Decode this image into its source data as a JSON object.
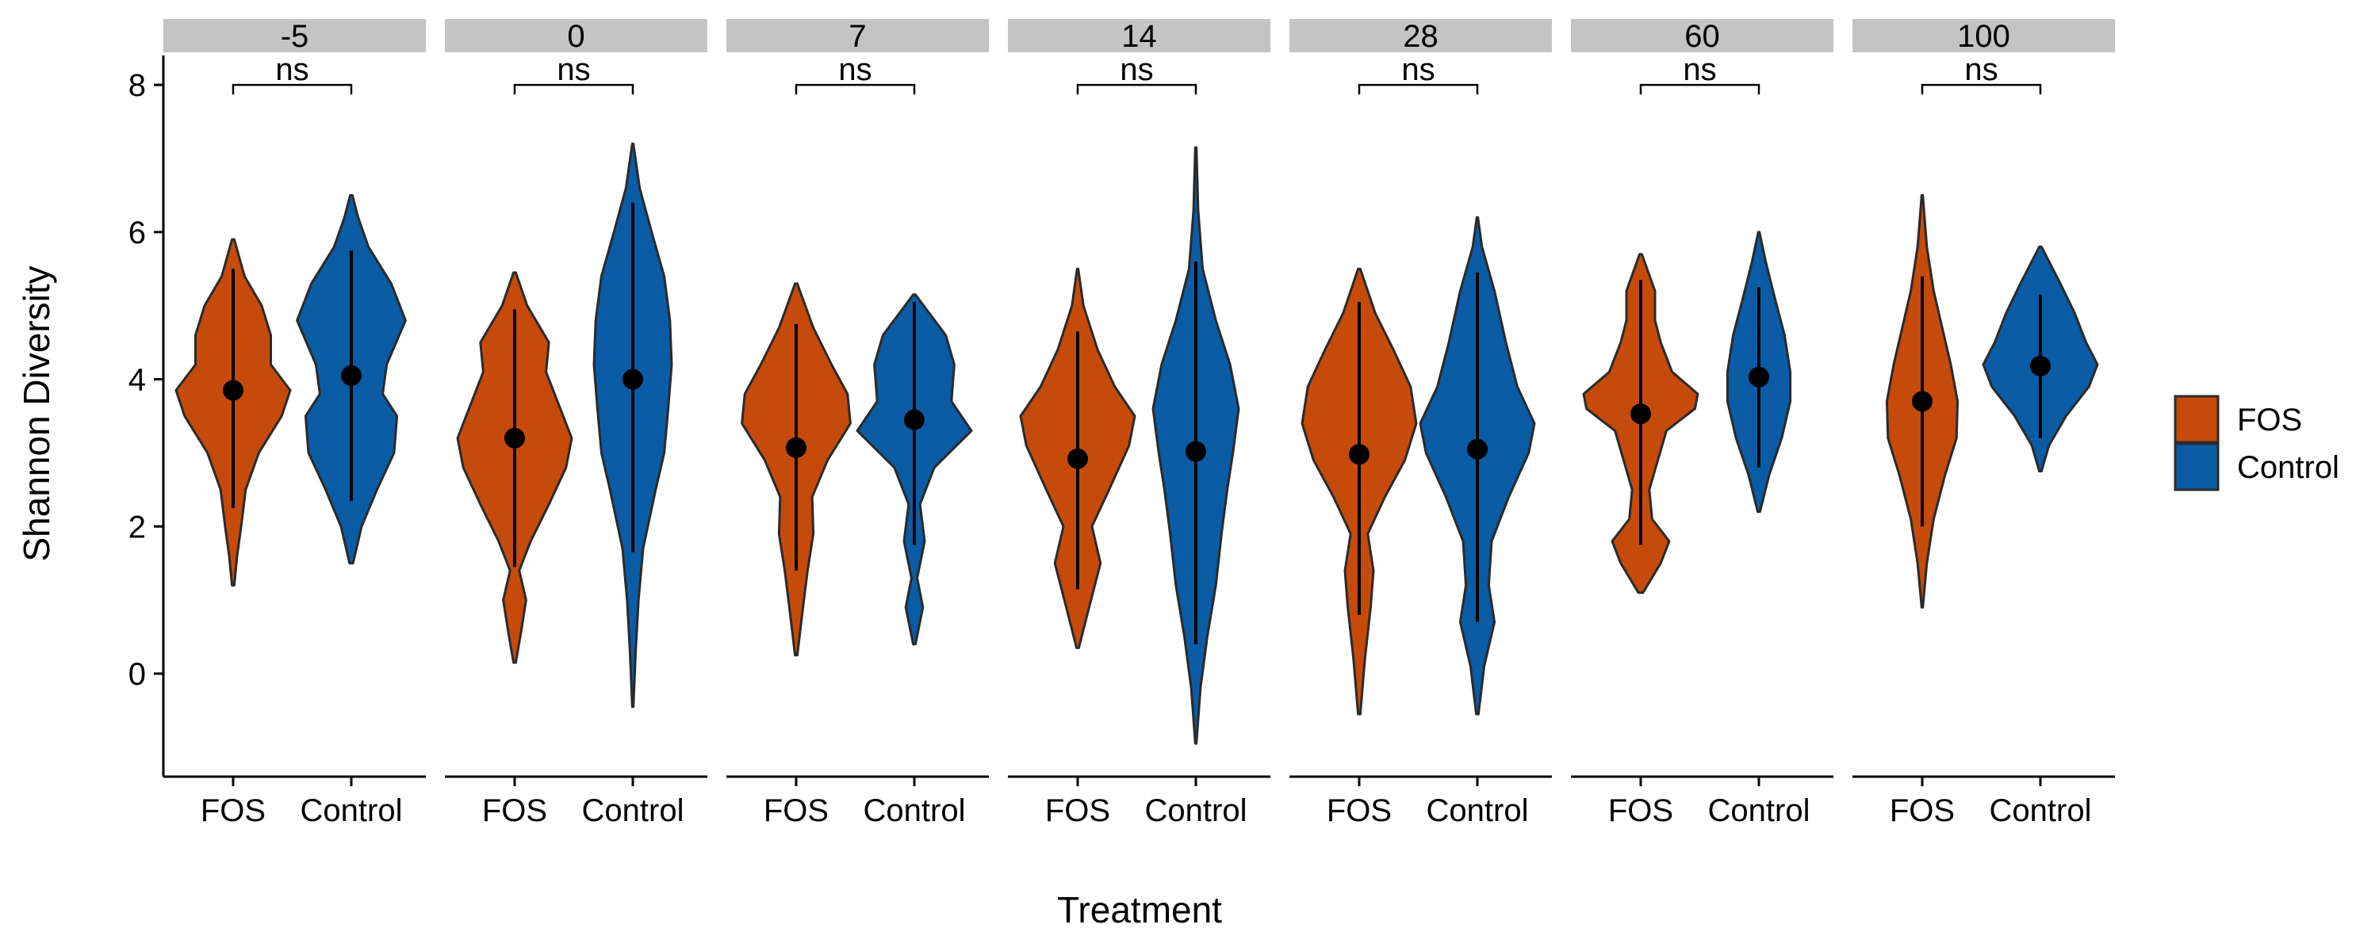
{
  "chart_data": {
    "type": "violin",
    "facet_variable_values": [
      "-5",
      "0",
      "7",
      "14",
      "28",
      "60",
      "100"
    ],
    "categories": [
      "FOS",
      "Control"
    ],
    "xlabel": "Treatment",
    "ylabel": "Shannon Diversity",
    "ylim": [
      -1.4,
      8.4
    ],
    "yticks": [
      0,
      2,
      4,
      6,
      8
    ],
    "legend": {
      "placement": "right",
      "entries": [
        {
          "label": "FOS",
          "color": "#C64B0B"
        },
        {
          "label": "Control",
          "color": "#0A5CA5"
        }
      ]
    },
    "grid": false,
    "significance": {
      "label": "ns",
      "bracket_y": 8.0
    },
    "facets": [
      {
        "label": "-5",
        "groups": [
          {
            "treatment": "FOS",
            "min": 1.2,
            "max": 5.9,
            "mean": 3.85,
            "lower": 2.25,
            "upper": 5.5,
            "density": [
              [
                1.2,
                0.02
              ],
              [
                1.6,
                0.07
              ],
              [
                2.0,
                0.14
              ],
              [
                2.5,
                0.22
              ],
              [
                3.0,
                0.45
              ],
              [
                3.5,
                0.85
              ],
              [
                3.85,
                1.0
              ],
              [
                4.2,
                0.66
              ],
              [
                4.6,
                0.66
              ],
              [
                5.0,
                0.5
              ],
              [
                5.4,
                0.2
              ],
              [
                5.9,
                0.02
              ]
            ]
          },
          {
            "treatment": "Control",
            "min": 1.5,
            "max": 6.5,
            "mean": 4.05,
            "lower": 2.35,
            "upper": 5.75,
            "density": [
              [
                1.5,
                0.03
              ],
              [
                2.0,
                0.18
              ],
              [
                2.5,
                0.45
              ],
              [
                3.0,
                0.75
              ],
              [
                3.5,
                0.8
              ],
              [
                3.8,
                0.55
              ],
              [
                4.2,
                0.62
              ],
              [
                4.8,
                0.95
              ],
              [
                5.3,
                0.7
              ],
              [
                5.8,
                0.3
              ],
              [
                6.2,
                0.12
              ],
              [
                6.5,
                0.02
              ]
            ]
          }
        ]
      },
      {
        "label": "0",
        "groups": [
          {
            "treatment": "FOS",
            "min": 0.15,
            "max": 5.45,
            "mean": 3.2,
            "lower": 1.45,
            "upper": 4.95,
            "density": [
              [
                0.15,
                0.02
              ],
              [
                0.6,
                0.12
              ],
              [
                1.0,
                0.2
              ],
              [
                1.4,
                0.08
              ],
              [
                1.8,
                0.28
              ],
              [
                2.3,
                0.6
              ],
              [
                2.8,
                0.9
              ],
              [
                3.2,
                1.0
              ],
              [
                3.6,
                0.8
              ],
              [
                4.1,
                0.55
              ],
              [
                4.5,
                0.6
              ],
              [
                5.0,
                0.22
              ],
              [
                5.45,
                0.02
              ]
            ]
          },
          {
            "treatment": "Control",
            "min": -0.45,
            "max": 7.2,
            "mean": 4.0,
            "lower": 1.65,
            "upper": 6.4,
            "density": [
              [
                -0.45,
                0.01
              ],
              [
                0.3,
                0.05
              ],
              [
                1.0,
                0.1
              ],
              [
                1.7,
                0.18
              ],
              [
                2.5,
                0.4
              ],
              [
                3.0,
                0.55
              ],
              [
                3.6,
                0.62
              ],
              [
                4.2,
                0.68
              ],
              [
                4.8,
                0.65
              ],
              [
                5.4,
                0.55
              ],
              [
                6.0,
                0.33
              ],
              [
                6.6,
                0.12
              ],
              [
                7.2,
                0.01
              ]
            ]
          }
        ]
      },
      {
        "label": "7",
        "groups": [
          {
            "treatment": "FOS",
            "min": 0.25,
            "max": 5.3,
            "mean": 3.07,
            "lower": 1.4,
            "upper": 4.75,
            "density": [
              [
                0.25,
                0.02
              ],
              [
                0.9,
                0.12
              ],
              [
                1.4,
                0.2
              ],
              [
                1.9,
                0.3
              ],
              [
                2.4,
                0.28
              ],
              [
                2.9,
                0.55
              ],
              [
                3.4,
                0.95
              ],
              [
                3.8,
                0.9
              ],
              [
                4.2,
                0.62
              ],
              [
                4.7,
                0.3
              ],
              [
                5.3,
                0.02
              ]
            ]
          },
          {
            "treatment": "Control",
            "min": 0.4,
            "max": 5.15,
            "mean": 3.45,
            "lower": 1.75,
            "upper": 5.05,
            "density": [
              [
                0.4,
                0.02
              ],
              [
                0.9,
                0.15
              ],
              [
                1.3,
                0.05
              ],
              [
                1.8,
                0.18
              ],
              [
                2.3,
                0.1
              ],
              [
                2.8,
                0.35
              ],
              [
                3.3,
                1.0
              ],
              [
                3.7,
                0.65
              ],
              [
                4.2,
                0.7
              ],
              [
                4.6,
                0.55
              ],
              [
                5.15,
                0.02
              ]
            ]
          }
        ]
      },
      {
        "label": "14",
        "groups": [
          {
            "treatment": "FOS",
            "min": 0.35,
            "max": 5.5,
            "mean": 2.92,
            "lower": 1.15,
            "upper": 4.65,
            "density": [
              [
                0.35,
                0.02
              ],
              [
                0.9,
                0.2
              ],
              [
                1.5,
                0.4
              ],
              [
                2.0,
                0.25
              ],
              [
                2.5,
                0.55
              ],
              [
                3.1,
                0.9
              ],
              [
                3.5,
                1.0
              ],
              [
                3.9,
                0.65
              ],
              [
                4.4,
                0.35
              ],
              [
                5.0,
                0.1
              ],
              [
                5.5,
                0.01
              ]
            ]
          },
          {
            "treatment": "Control",
            "min": -0.95,
            "max": 7.15,
            "mean": 3.02,
            "lower": 0.4,
            "upper": 5.6,
            "density": [
              [
                -0.95,
                0.01
              ],
              [
                -0.2,
                0.08
              ],
              [
                0.5,
                0.2
              ],
              [
                1.2,
                0.35
              ],
              [
                1.9,
                0.45
              ],
              [
                2.5,
                0.55
              ],
              [
                3.0,
                0.65
              ],
              [
                3.6,
                0.75
              ],
              [
                4.2,
                0.6
              ],
              [
                4.8,
                0.35
              ],
              [
                5.5,
                0.12
              ],
              [
                6.3,
                0.04
              ],
              [
                7.15,
                0.01
              ]
            ]
          }
        ]
      },
      {
        "label": "28",
        "groups": [
          {
            "treatment": "FOS",
            "min": -0.55,
            "max": 5.5,
            "mean": 2.98,
            "lower": 0.8,
            "upper": 5.05,
            "density": [
              [
                -0.55,
                0.02
              ],
              [
                0.2,
                0.1
              ],
              [
                0.9,
                0.2
              ],
              [
                1.4,
                0.25
              ],
              [
                1.9,
                0.15
              ],
              [
                2.4,
                0.45
              ],
              [
                2.9,
                0.8
              ],
              [
                3.4,
                1.0
              ],
              [
                3.9,
                0.9
              ],
              [
                4.4,
                0.6
              ],
              [
                4.9,
                0.28
              ],
              [
                5.5,
                0.02
              ]
            ]
          },
          {
            "treatment": "Control",
            "min": -0.55,
            "max": 6.2,
            "mean": 3.05,
            "lower": 0.7,
            "upper": 5.45,
            "density": [
              [
                -0.55,
                0.02
              ],
              [
                0.1,
                0.12
              ],
              [
                0.7,
                0.3
              ],
              [
                1.2,
                0.2
              ],
              [
                1.8,
                0.25
              ],
              [
                2.4,
                0.55
              ],
              [
                3.0,
                0.9
              ],
              [
                3.4,
                1.0
              ],
              [
                3.9,
                0.7
              ],
              [
                4.5,
                0.5
              ],
              [
                5.2,
                0.3
              ],
              [
                5.8,
                0.08
              ],
              [
                6.2,
                0.01
              ]
            ]
          }
        ]
      },
      {
        "label": "60",
        "groups": [
          {
            "treatment": "FOS",
            "min": 1.1,
            "max": 5.7,
            "mean": 3.53,
            "lower": 1.75,
            "upper": 5.35,
            "density": [
              [
                1.1,
                0.04
              ],
              [
                1.5,
                0.35
              ],
              [
                1.8,
                0.5
              ],
              [
                2.1,
                0.2
              ],
              [
                2.5,
                0.15
              ],
              [
                2.9,
                0.3
              ],
              [
                3.3,
                0.45
              ],
              [
                3.6,
                0.95
              ],
              [
                3.8,
                1.0
              ],
              [
                4.1,
                0.55
              ],
              [
                4.5,
                0.35
              ],
              [
                4.8,
                0.25
              ],
              [
                5.2,
                0.25
              ],
              [
                5.7,
                0.02
              ]
            ]
          },
          {
            "treatment": "Control",
            "min": 2.2,
            "max": 6.0,
            "mean": 4.03,
            "lower": 2.8,
            "upper": 5.25,
            "density": [
              [
                2.2,
                0.02
              ],
              [
                2.7,
                0.18
              ],
              [
                3.2,
                0.4
              ],
              [
                3.7,
                0.55
              ],
              [
                4.1,
                0.55
              ],
              [
                4.6,
                0.45
              ],
              [
                5.1,
                0.28
              ],
              [
                5.6,
                0.12
              ],
              [
                6.0,
                0.01
              ]
            ]
          }
        ]
      },
      {
        "label": "100",
        "groups": [
          {
            "treatment": "FOS",
            "min": 0.9,
            "max": 6.5,
            "mean": 3.7,
            "lower": 2.0,
            "upper": 5.4,
            "density": [
              [
                0.9,
                0.01
              ],
              [
                1.5,
                0.08
              ],
              [
                2.1,
                0.2
              ],
              [
                2.7,
                0.4
              ],
              [
                3.2,
                0.6
              ],
              [
                3.7,
                0.62
              ],
              [
                4.2,
                0.5
              ],
              [
                4.7,
                0.35
              ],
              [
                5.2,
                0.2
              ],
              [
                5.8,
                0.08
              ],
              [
                6.5,
                0.01
              ]
            ]
          },
          {
            "treatment": "Control",
            "min": 2.75,
            "max": 5.8,
            "mean": 4.18,
            "lower": 3.2,
            "upper": 5.15,
            "density": [
              [
                2.75,
                0.02
              ],
              [
                3.1,
                0.15
              ],
              [
                3.5,
                0.45
              ],
              [
                3.9,
                0.85
              ],
              [
                4.2,
                1.0
              ],
              [
                4.5,
                0.8
              ],
              [
                4.9,
                0.6
              ],
              [
                5.3,
                0.35
              ],
              [
                5.8,
                0.02
              ]
            ]
          }
        ]
      }
    ]
  }
}
